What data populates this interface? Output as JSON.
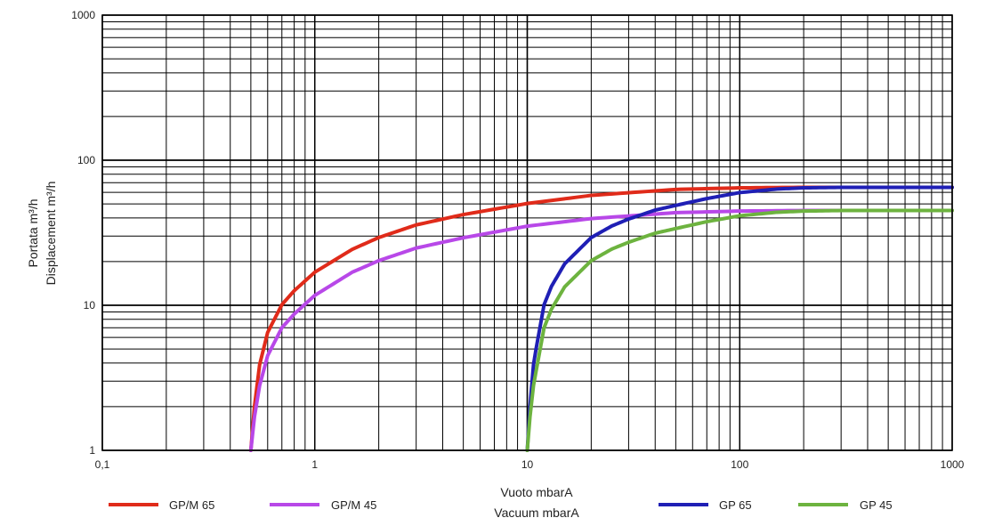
{
  "chart_data": {
    "type": "line",
    "x_scale": "log",
    "y_scale": "log",
    "xlim": [
      0.1,
      1000
    ],
    "ylim": [
      1,
      1000
    ],
    "x_ticks": [
      0.1,
      1,
      10,
      100,
      1000
    ],
    "y_ticks": [
      1,
      10,
      100,
      1000
    ],
    "x_tick_labels": [
      "0,1",
      "1",
      "10",
      "100",
      "1000"
    ],
    "y_tick_labels": [
      "1",
      "10",
      "100",
      "1000"
    ],
    "xlabel_line1": "Vuoto mbarA",
    "xlabel_line2": "Vacuum mbarA",
    "ylabel_line1": "Portata m³/h",
    "ylabel_line2": "Displacement m³/h",
    "grid": true,
    "legend_position": "bottom",
    "series": [
      {
        "name": "GP/M 65",
        "color": "#e02b1a",
        "x": [
          0.5,
          0.52,
          0.55,
          0.6,
          0.7,
          0.8,
          1,
          1.5,
          2,
          3,
          5,
          10,
          20,
          50,
          100,
          200,
          500,
          1000
        ],
        "y": [
          1,
          2,
          3.9,
          6.5,
          10.1,
          12.6,
          16.9,
          24.3,
          29.3,
          35.8,
          42.2,
          50.3,
          57.2,
          62.9,
          64.5,
          65.0,
          65.0,
          65.0
        ]
      },
      {
        "name": "GP/M 45",
        "color": "#b848e8",
        "x": [
          0.5,
          0.52,
          0.55,
          0.6,
          0.7,
          0.8,
          1,
          1.5,
          2,
          3,
          5,
          10,
          20,
          50,
          100,
          200,
          500,
          1000
        ],
        "y": [
          1,
          1.7,
          2.8,
          4.5,
          7.0,
          8.7,
          11.7,
          16.9,
          20.3,
          24.8,
          29.2,
          35.1,
          39.6,
          43.5,
          44.6,
          45.0,
          45.0,
          45.0
        ]
      },
      {
        "name": "GP 65",
        "color": "#1f1fb5",
        "x": [
          10,
          10.3,
          10.7,
          11,
          12,
          13,
          15,
          20,
          25,
          30,
          40,
          50,
          70,
          100,
          150,
          200,
          300,
          500,
          1000
        ],
        "y": [
          1,
          2,
          3.9,
          5.0,
          10.1,
          13.5,
          19.3,
          29.3,
          35.2,
          39.3,
          45.3,
          48.8,
          54.4,
          59.8,
          63.3,
          64.5,
          65.0,
          65.0,
          65.0
        ]
      },
      {
        "name": "GP 45",
        "color": "#6db33f",
        "x": [
          10,
          10.3,
          10.7,
          11,
          12,
          13,
          15,
          20,
          25,
          30,
          40,
          50,
          70,
          100,
          150,
          200,
          300,
          500,
          1000
        ],
        "y": [
          1,
          1.7,
          2.8,
          3.5,
          7.0,
          9.4,
          13.4,
          20.3,
          24.4,
          27.2,
          31.4,
          33.8,
          37.7,
          41.4,
          43.8,
          44.6,
          45.0,
          45.0,
          45.0
        ]
      }
    ]
  }
}
